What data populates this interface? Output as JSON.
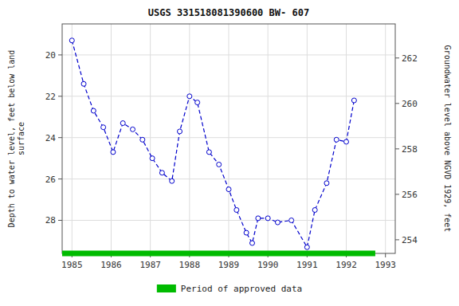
{
  "chart_data": {
    "type": "line",
    "title": "USGS 331518081390600 BW- 607",
    "ylabel": "Depth to water level, feet below land\nsurface",
    "y2label": "Groundwater level above NGVD 1929, feet",
    "x": [
      1985.0,
      1985.3,
      1985.55,
      1985.8,
      1986.05,
      1986.3,
      1986.55,
      1986.8,
      1987.05,
      1987.3,
      1987.55,
      1987.75,
      1988.0,
      1988.2,
      1988.5,
      1988.75,
      1989.0,
      1989.2,
      1989.45,
      1989.6,
      1989.75,
      1990.0,
      1990.25,
      1990.6,
      1991.0,
      1991.2,
      1991.5,
      1991.75,
      1992.0,
      1992.2
    ],
    "values": [
      19.3,
      21.4,
      22.7,
      23.5,
      24.7,
      23.3,
      23.6,
      24.1,
      25.0,
      25.7,
      26.1,
      23.7,
      22.0,
      22.3,
      24.7,
      25.3,
      26.5,
      27.5,
      28.6,
      29.1,
      27.9,
      27.9,
      28.1,
      28.0,
      29.3,
      27.5,
      26.2,
      24.1,
      24.2,
      22.2
    ],
    "color": "#0000CC",
    "marker": "circle",
    "line_style": "dashed",
    "xlim": [
      1984.75,
      1993.25
    ],
    "xticks": [
      1985,
      1986,
      1987,
      1988,
      1989,
      1990,
      1991,
      1992,
      1993
    ],
    "ylim": [
      29.6,
      18.5
    ],
    "yticks": [
      20,
      22,
      24,
      26,
      28
    ],
    "y2lim": [
      253.4,
      263.5
    ],
    "y2ticks": [
      254,
      256,
      258,
      260,
      262
    ],
    "grid": true,
    "bands": [
      {
        "name": "Period of approved data",
        "color": "#00BB00",
        "x": [
          1984.75,
          1992.74
        ]
      }
    ]
  }
}
